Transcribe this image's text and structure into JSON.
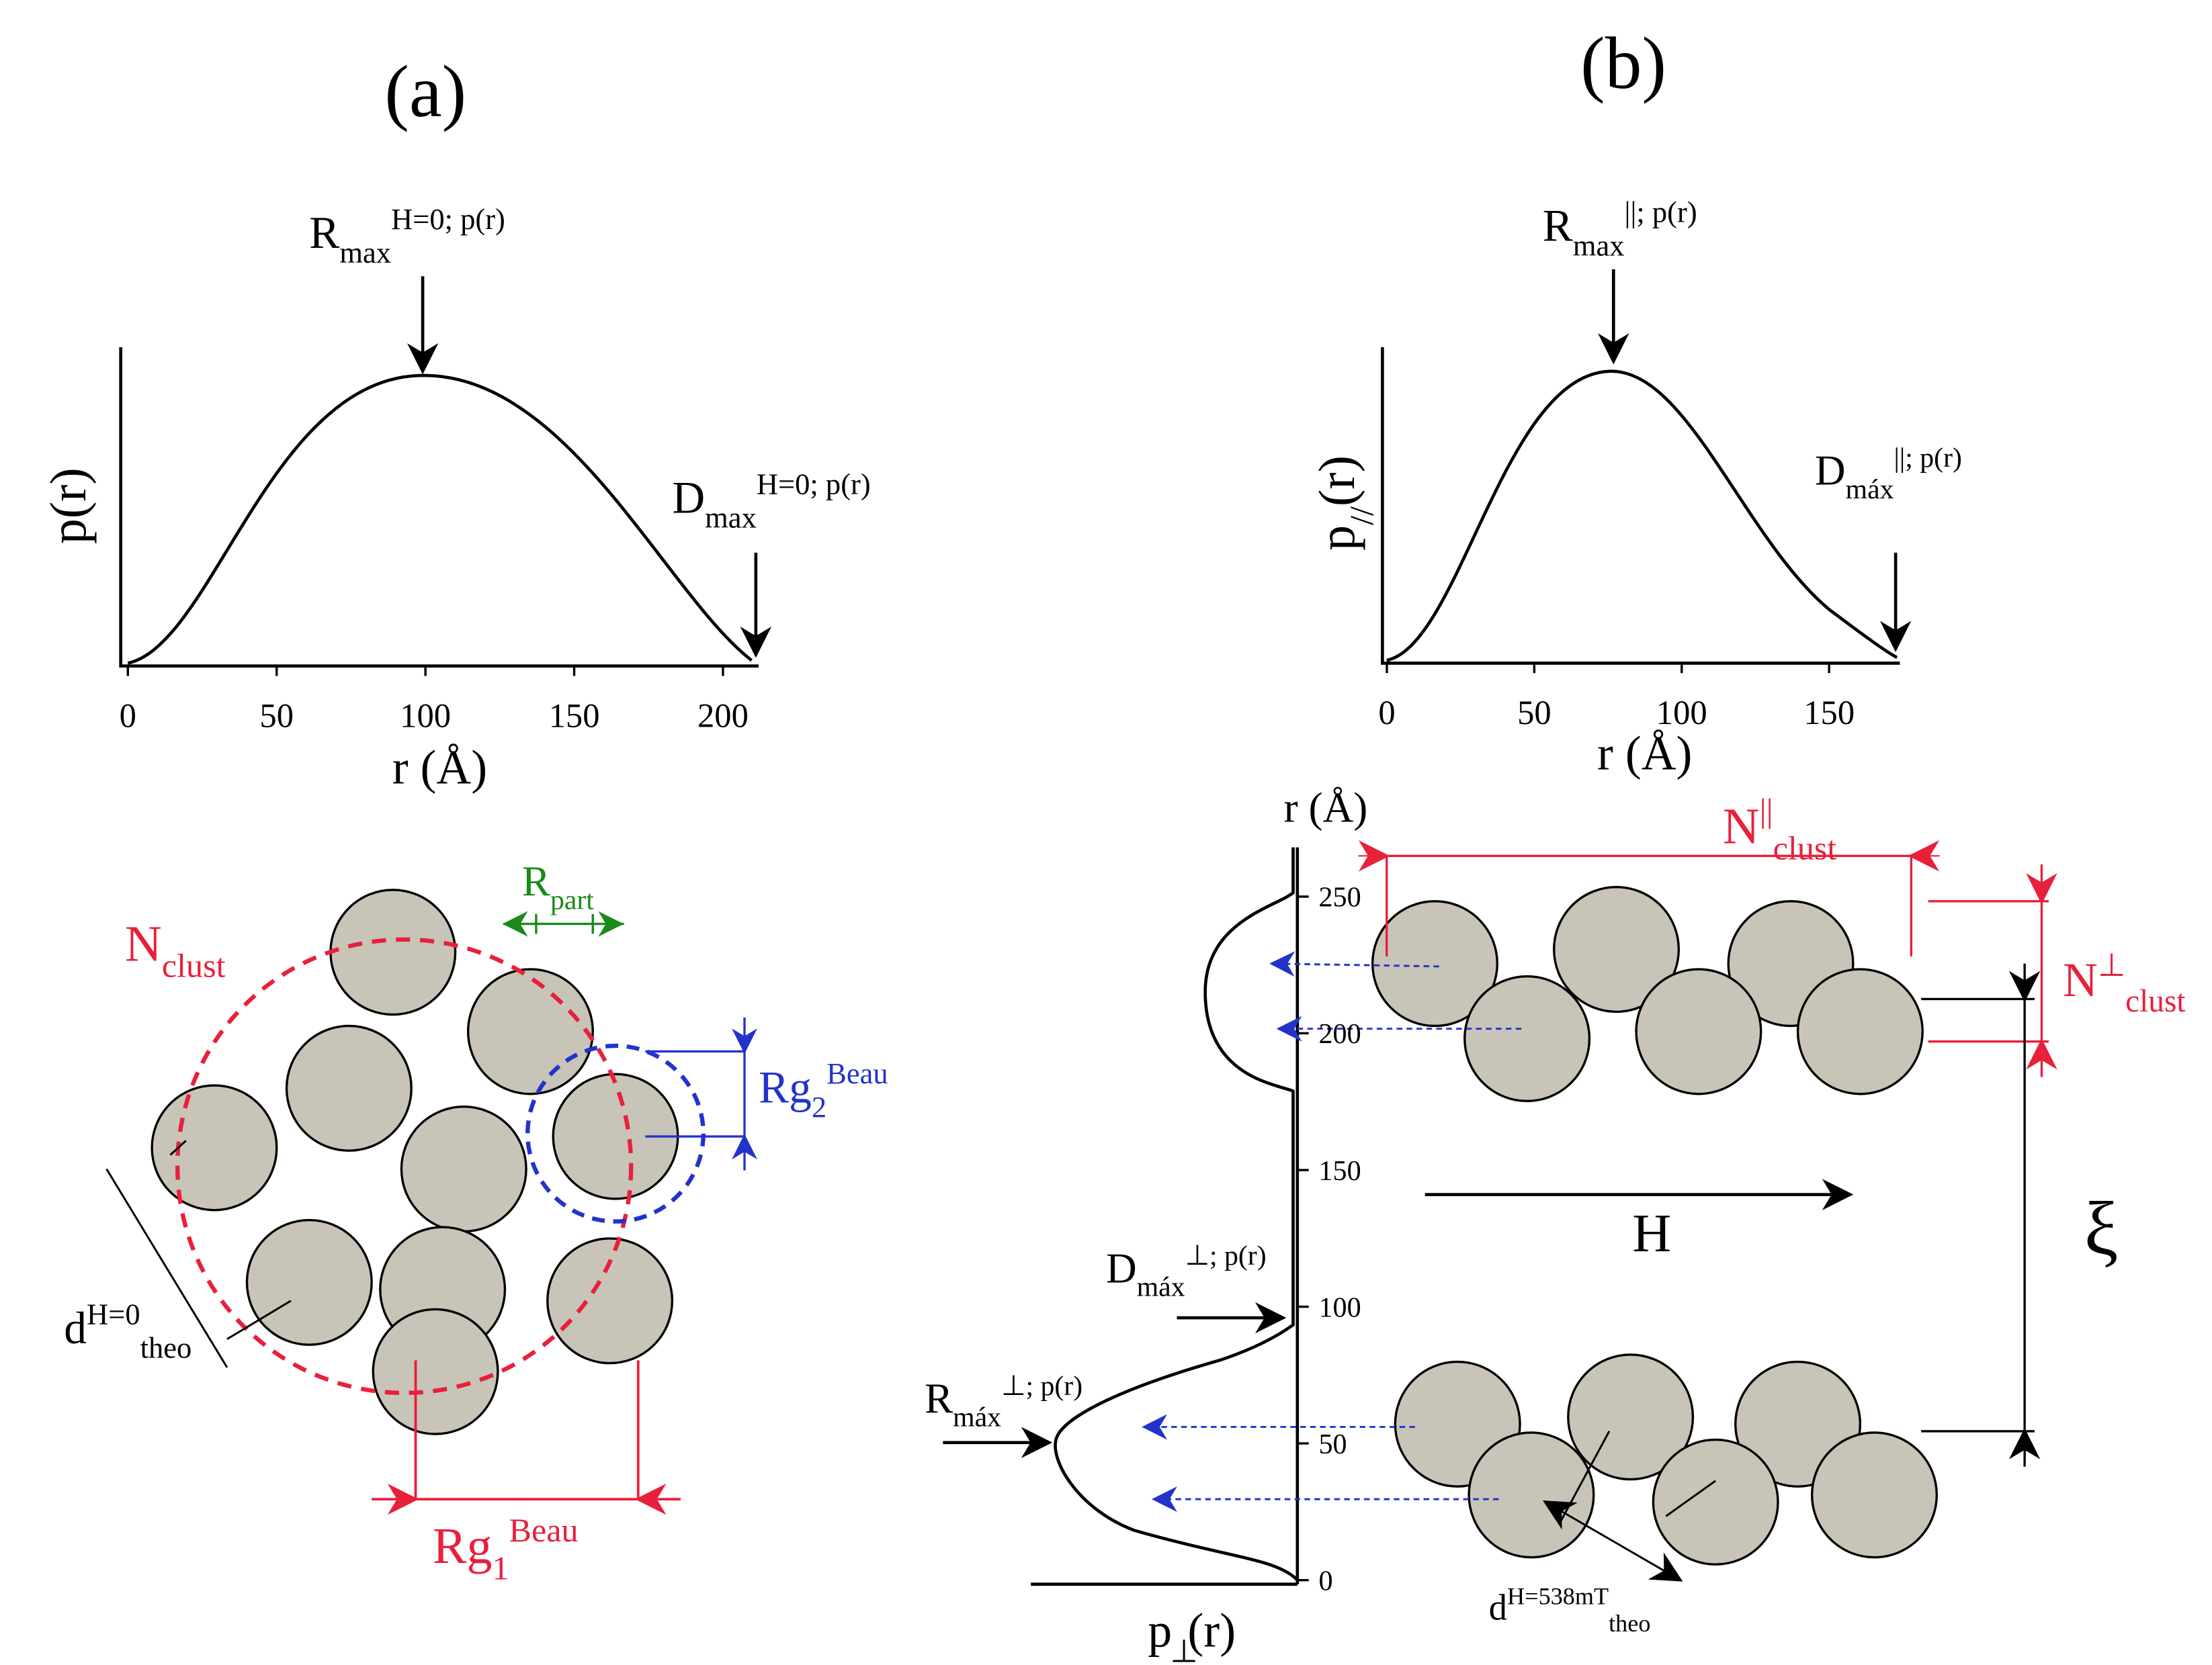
{
  "panel_a": {
    "label": "(a)",
    "plot": {
      "y_label": "p(r)",
      "x_label": "r (Å)",
      "xlim": [
        -2.4,
        212
      ],
      "xticks": [
        0,
        50,
        100,
        150,
        200
      ],
      "r_max": {
        "base": "R",
        "sub": "max",
        "sup": "H=0; p(r)"
      },
      "d_max": {
        "base": "D",
        "sub": "max",
        "sup": "H=0; p(r)"
      }
    },
    "diagram": {
      "n_clust": {
        "base": "N",
        "sub": "clust"
      },
      "r_part": {
        "base": "R",
        "sub": "part"
      },
      "rg2": {
        "base": "Rg",
        "sub": "2",
        "sup": "Beau"
      },
      "d_theo": {
        "base": "d",
        "sup": "H=0",
        "sub": "theo"
      },
      "rg1": {
        "base": "Rg",
        "sub": "1",
        "sup": "Beau"
      }
    }
  },
  "panel_b": {
    "label": "(b)",
    "plot": {
      "y_label": {
        "base": "p",
        "sub": "//",
        "tail": "(r)"
      },
      "x_label": "r (Å)",
      "xlim": [
        -1.5,
        174
      ],
      "xticks": [
        0,
        50,
        100,
        150
      ],
      "r_max": {
        "base": "R",
        "sub": "max",
        "sup": "||; p(r)"
      },
      "d_max": {
        "base": "D",
        "sub": "máx",
        "sup": "||; p(r)"
      }
    },
    "diagram": {
      "r_label": "r (Å)",
      "ylim": [
        -1.5,
        268
      ],
      "yticks": [
        0,
        50,
        100,
        150,
        200,
        250
      ],
      "n_par": {
        "base": "N",
        "sup": "||",
        "sub": "clust"
      },
      "n_perp": {
        "base": "N",
        "sup": "⊥",
        "sub": "clust"
      },
      "field": "H",
      "xi": "ξ",
      "d_max": {
        "base": "D",
        "sub": "máx",
        "sup": "⊥; p(r)"
      },
      "r_max": {
        "base": "R",
        "sub": "máx",
        "sup": "⊥; p(r)"
      },
      "d_theo": {
        "base": "d",
        "sup": "H=538mT",
        "sub": "theo"
      },
      "p_label": {
        "base": "p",
        "sub": "⊥",
        "tail": "(r)"
      }
    }
  }
}
